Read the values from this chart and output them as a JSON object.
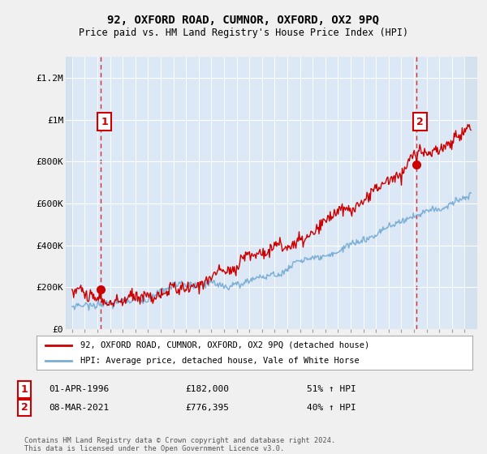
{
  "title": "92, OXFORD ROAD, CUMNOR, OXFORD, OX2 9PQ",
  "subtitle": "Price paid vs. HM Land Registry's House Price Index (HPI)",
  "legend_line1": "92, OXFORD ROAD, CUMNOR, OXFORD, OX2 9PQ (detached house)",
  "legend_line2": "HPI: Average price, detached house, Vale of White Horse",
  "annotation1_date": "01-APR-1996",
  "annotation1_price": "£182,000",
  "annotation1_hpi": "51% ↑ HPI",
  "annotation2_date": "08-MAR-2021",
  "annotation2_price": "£776,395",
  "annotation2_hpi": "40% ↑ HPI",
  "footnote1": "Contains HM Land Registry data © Crown copyright and database right 2024.",
  "footnote2": "This data is licensed under the Open Government Licence v3.0.",
  "ylim": [
    0,
    1300000
  ],
  "yticks": [
    0,
    200000,
    400000,
    600000,
    800000,
    1000000,
    1200000
  ],
  "ytick_labels": [
    "£0",
    "£200K",
    "£400K",
    "£600K",
    "£800K",
    "£1M",
    "£1.2M"
  ],
  "bg_color": "#f0f0f0",
  "plot_bg_color": "#dce8f5",
  "hatch_color": "#c0cfd8",
  "red_color": "#cc0000",
  "blue_color": "#7aaed4",
  "sale1_year": 1996.25,
  "sale1_price": 182000,
  "sale2_year": 2021.18,
  "sale2_price": 776395,
  "dashed_line1_x": 1996.25,
  "dashed_line2_x": 2021.18,
  "xmin": 1993.5,
  "xmax": 2026.0,
  "hatch_end": 1994.0,
  "hatch_start2": 2025.0
}
